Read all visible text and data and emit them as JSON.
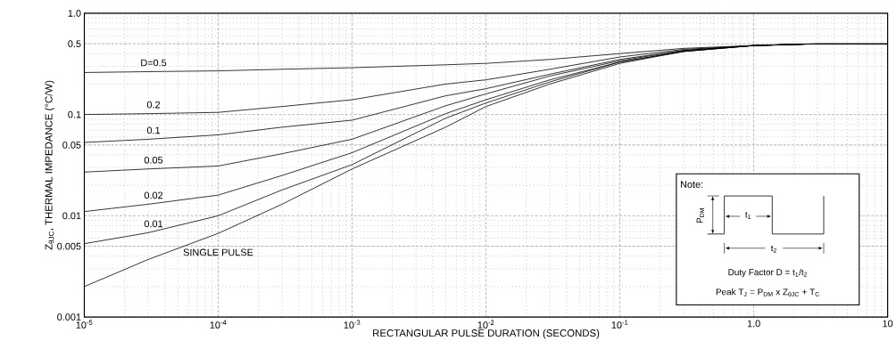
{
  "chart_data": {
    "type": "line",
    "xlabel": "RECTANGULAR PULSE DURATION (SECONDS)",
    "ylabel": "Z$_{θJC}$, THERMAL IMPEDANCE (°C/W)",
    "x": [
      1e-05,
      3e-05,
      0.0001,
      0.0003,
      0.001,
      0.005,
      0.01,
      0.03,
      0.1,
      0.3,
      1,
      3,
      10
    ],
    "series": [
      {
        "name": "D=0.5",
        "color": "#000000",
        "values": [
          0.26,
          0.265,
          0.27,
          0.28,
          0.29,
          0.31,
          0.32,
          0.35,
          0.4,
          0.45,
          0.48,
          0.5,
          0.5
        ]
      },
      {
        "name": "0.2",
        "color": "#000000",
        "values": [
          0.1,
          0.102,
          0.105,
          0.12,
          0.14,
          0.2,
          0.22,
          0.28,
          0.37,
          0.44,
          0.48,
          0.5,
          0.5
        ]
      },
      {
        "name": "0.1",
        "color": "#000000",
        "values": [
          0.053,
          0.057,
          0.063,
          0.075,
          0.088,
          0.153,
          0.18,
          0.25,
          0.35,
          0.43,
          0.48,
          0.5,
          0.5
        ]
      },
      {
        "name": "0.05",
        "color": "#000000",
        "values": [
          0.027,
          0.029,
          0.031,
          0.041,
          0.057,
          0.122,
          0.16,
          0.24,
          0.34,
          0.43,
          0.48,
          0.5,
          0.5
        ]
      },
      {
        "name": "0.02",
        "color": "#000000",
        "values": [
          0.011,
          0.013,
          0.016,
          0.025,
          0.042,
          0.102,
          0.14,
          0.22,
          0.33,
          0.42,
          0.48,
          0.5,
          0.5
        ]
      },
      {
        "name": "0.01",
        "color": "#000000",
        "values": [
          0.0053,
          0.0068,
          0.01,
          0.018,
          0.032,
          0.092,
          0.13,
          0.21,
          0.33,
          0.42,
          0.48,
          0.5,
          0.5
        ]
      },
      {
        "name": "SINGLE PULSE",
        "color": "#000000",
        "values": [
          0.002,
          0.0037,
          0.0067,
          0.013,
          0.029,
          0.075,
          0.12,
          0.2,
          0.32,
          0.42,
          0.48,
          0.5,
          0.5
        ]
      }
    ],
    "xlim": [
      1e-05,
      10
    ],
    "ylim": [
      0.001,
      1
    ],
    "xticks": [
      {
        "value": 1e-05,
        "label": "10$^{-5}$"
      },
      {
        "value": 0.0001,
        "label": "10$^{-4}$"
      },
      {
        "value": 0.001,
        "label": "10$^{-3}$"
      },
      {
        "value": 0.01,
        "label": "10$^{-2}$"
      },
      {
        "value": 0.1,
        "label": "10$^{-1}$"
      },
      {
        "value": 1,
        "label": "1.0"
      },
      10
    ],
    "yticks": [
      0.001,
      0.005,
      0.01,
      0.05,
      0.1,
      0.5,
      {
        "value": 1,
        "label": "1.0"
      }
    ],
    "log": "xy",
    "grid": true,
    "annotations": [
      "Note:",
      "P$_{DM}$",
      "t$_{1}$",
      "t$_{2}$",
      "Duty Factor  D = t$_{1}$/t$_{2}$",
      "Peak T$_{J}$ = P$_{DM}$ x Z$_{θJC}$ + T$_{C}$"
    ]
  }
}
